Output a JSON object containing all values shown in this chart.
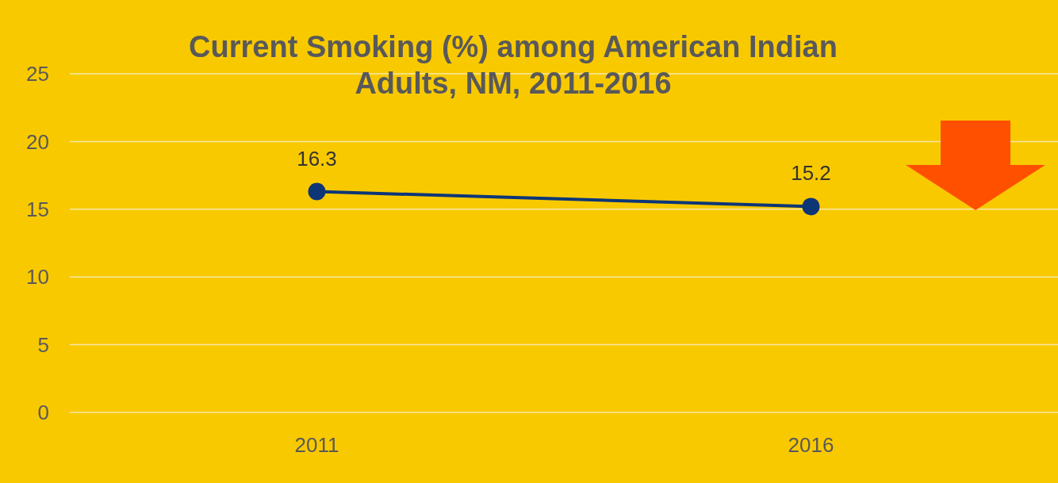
{
  "chart_data": {
    "type": "line",
    "title": "Current Smoking (%) among American Indian Adults, NM, 2011-2016",
    "categories": [
      "2011",
      "2016"
    ],
    "series": [
      {
        "color": "#0d3677",
        "values": [
          16.3,
          15.2
        ]
      }
    ],
    "ylim": [
      0,
      25
    ],
    "yticks": [
      0,
      5,
      10,
      15,
      20,
      25
    ],
    "grid": "y",
    "marker": "circle",
    "data_labels": true
  }
}
